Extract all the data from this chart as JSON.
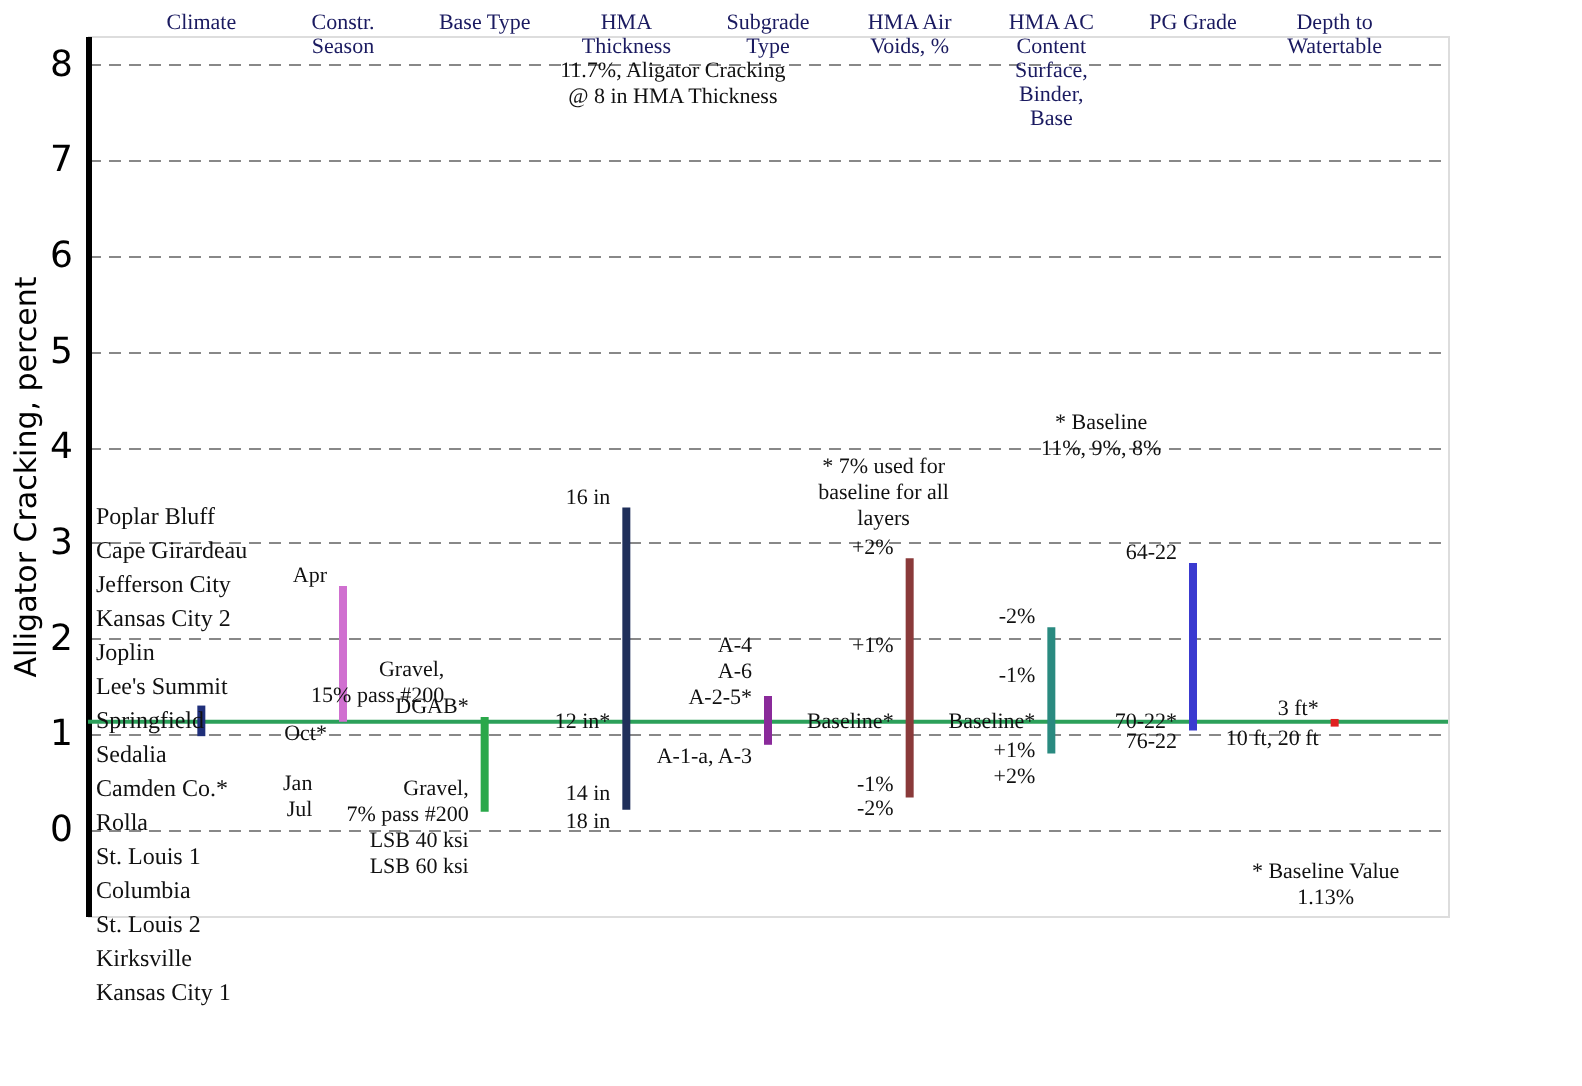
{
  "chart_data": {
    "type": "bar",
    "ylabel": "Alligator Cracking, percent",
    "categories": [
      "Climate",
      "Constr. Season",
      "Base Type",
      "HMA Thickness",
      "Subgrade Type",
      "HMA Air Voids, %",
      "HMA AC Content Surface, Binder, Base",
      "PG Grade",
      "Depth to Watertable"
    ],
    "base": [
      0.98,
      1.13,
      0.19,
      0.21,
      0.89,
      0.34,
      0.8,
      1.04,
      1.08
    ],
    "values": [
      0.32,
      1.42,
      0.99,
      3.16,
      0.51,
      2.5,
      1.32,
      1.75,
      0.08
    ],
    "colors": [
      "#1f2f7a",
      "#d070d0",
      "#2aa84a",
      "#1f2f5a",
      "#8a2a9a",
      "#8a3a3a",
      "#2a8a80",
      "#3a3ad0",
      "#e02020"
    ],
    "ylim": [
      -0.9,
      8.3
    ],
    "yticks": [
      0,
      1,
      2,
      3,
      4,
      5,
      6,
      7,
      8
    ],
    "grid": "y",
    "ref_lines": [
      {
        "axis": "y",
        "value": 1.13,
        "color": "#2ca05a"
      }
    ],
    "annotations": [
      "11.7%, Aligator Cracking\n@ 8 in HMA Thickness",
      "Poplar Bluff\nCape Girardeau\nJefferson City\nKansas City 2\nJoplin\nLee's Summit\nSpringfield\nSedalia\nCamden Co.*\nRolla\nSt. Louis 1\nColumbia\nSt. Louis 2\nKirksville\nKansas City 1",
      "* 7% used for\nbaseline for all\nlayers",
      "* Baseline\n11%, 9%, 8%",
      "* Baseline Value\n1.13%",
      "Jan\nJul",
      "Gravel,\n15% pass #200",
      {
        "text": "Apr",
        "x": "Constr. Season",
        "y": 2.55
      },
      {
        "text": "Oct*",
        "x": "Constr. Season",
        "y": 1.13
      },
      {
        "text": "DGAB*",
        "x": "Base Type",
        "y": 1.18
      },
      {
        "text": "Gravel,\n7% pass #200\nLSB 40 ksi\nLSB 60 ksi",
        "x": "Base Type",
        "y": 0.55
      },
      {
        "text": "16 in",
        "x": "HMA Thickness",
        "y": 3.37
      },
      {
        "text": "12 in*",
        "x": "HMA Thickness",
        "y": 1.25
      },
      {
        "text": "14 in",
        "x": "HMA Thickness",
        "y": 0.5
      },
      {
        "text": "18 in",
        "x": "HMA Thickness",
        "y": 0.21
      },
      {
        "text": "A-4\nA-6\nA-2-5*",
        "x": "Subgrade Type",
        "y": 1.27
      },
      {
        "text": "A-1-a, A-3",
        "x": "Subgrade Type",
        "y": 0.89
      },
      {
        "text": "+2%",
        "x": "HMA Air Voids, %",
        "y": 2.84
      },
      {
        "text": "+1%",
        "x": "HMA Air Voids, %",
        "y": 1.82
      },
      {
        "text": "Baseline*",
        "x": "HMA Air Voids, %",
        "y": 1.25
      },
      {
        "text": "-1%",
        "x": "HMA Air Voids, %",
        "y": 0.6
      },
      {
        "text": "-2%",
        "x": "HMA Air Voids, %",
        "y": 0.34
      },
      {
        "text": "-2%",
        "x": "HMA AC Content Surface, Binder, Base",
        "y": 2.12
      },
      {
        "text": "-1%",
        "x": "HMA AC Content Surface, Binder, Base",
        "y": 1.5
      },
      {
        "text": "Baseline*",
        "x": "HMA AC Content Surface, Binder, Base",
        "y": 1.25
      },
      {
        "text": "+1%\n+2%",
        "x": "HMA AC Content Surface, Binder, Base",
        "y": 0.95
      },
      {
        "text": "64-22",
        "x": "PG Grade",
        "y": 2.79
      },
      {
        "text": "70-22*",
        "x": "PG Grade",
        "y": 1.25
      },
      {
        "text": "76-22",
        "x": "PG Grade",
        "y": 1.04
      },
      {
        "text": "3 ft*",
        "x": "Depth to Watertable",
        "y": 1.16
      },
      {
        "text": "10 ft, 20 ft",
        "x": "Depth to Watertable",
        "y": 1.08
      }
    ]
  }
}
